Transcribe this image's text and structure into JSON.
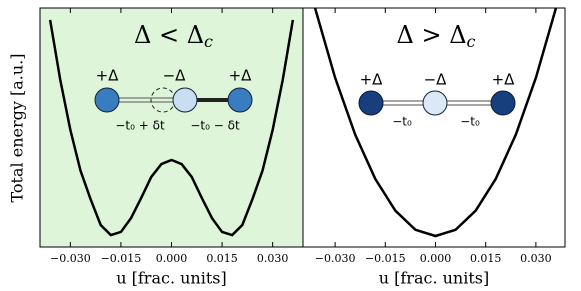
{
  "chart_data": [
    {
      "type": "line",
      "ylabel": "Total energy  [a.u.]",
      "xlabel": "u [frac. units]",
      "title": {
        "text": "Δ < Δ",
        "sub": "c"
      },
      "background": "#dff5d9",
      "xlim": [
        -0.039,
        0.039
      ],
      "ylim": [
        0,
        10
      ],
      "xticks": [
        {
          "value": -0.03,
          "label": "−0.030"
        },
        {
          "value": -0.015,
          "label": "−0.015"
        },
        {
          "value": 0,
          "label": "0.000"
        },
        {
          "value": 0.015,
          "label": "0.015"
        },
        {
          "value": 0.03,
          "label": "0.030"
        }
      ],
      "x": [
        -0.036,
        -0.033,
        -0.03,
        -0.027,
        -0.024,
        -0.021,
        -0.018,
        -0.015,
        -0.012,
        -0.009,
        -0.006,
        -0.003,
        0,
        0.003,
        0.006,
        0.009,
        0.012,
        0.015,
        0.018,
        0.021,
        0.024,
        0.027,
        0.03,
        0.033,
        0.036
      ],
      "series": [
        {
          "color": "#000000",
          "values": [
            9.5,
            7.0,
            4.9,
            3.2,
            2.0,
            0.92,
            0.5,
            0.63,
            1.21,
            2.05,
            2.93,
            3.47,
            3.64,
            3.47,
            2.93,
            2.05,
            1.21,
            0.63,
            0.5,
            0.92,
            2.0,
            3.2,
            4.9,
            7.0,
            9.5
          ]
        }
      ],
      "annotations": [
        "+Δ",
        "−Δ",
        "+Δ",
        "−t₀ + δt",
        "−t₀ − δt"
      ]
    },
    {
      "type": "line",
      "xlabel": "u [frac. units]",
      "title": {
        "text": "Δ > Δ",
        "sub": "c"
      },
      "xlim": [
        -0.0396,
        0.0387
      ],
      "ylim": [
        0,
        10
      ],
      "xticks": [
        {
          "value": -0.03,
          "label": "−0.030"
        },
        {
          "value": -0.015,
          "label": "−0.015"
        },
        {
          "value": 0,
          "label": "0.000"
        },
        {
          "value": 0.015,
          "label": "0.015"
        },
        {
          "value": 0.03,
          "label": "0.030"
        }
      ],
      "x": [
        -0.036,
        -0.03,
        -0.024,
        -0.018,
        -0.012,
        -0.006,
        0,
        0.006,
        0.012,
        0.018,
        0.024,
        0.03,
        0.036
      ],
      "series": [
        {
          "color": "#000000",
          "values": [
            10.0,
            7.08,
            4.7,
            2.85,
            1.52,
            0.72,
            0.46,
            0.72,
            1.52,
            2.85,
            4.7,
            7.08,
            10.0
          ]
        }
      ],
      "annotations": [
        "+Δ",
        "−Δ",
        "+Δ",
        "−t₀",
        "−t₀"
      ]
    }
  ]
}
